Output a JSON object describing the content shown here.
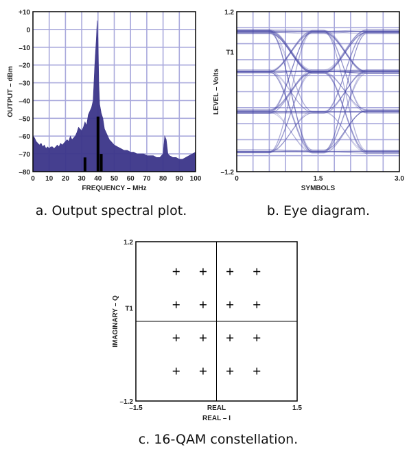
{
  "chart_data": [
    {
      "type": "area",
      "xlabel": "FREQUENCY – MHz",
      "ylabel": "OUTPUT – dBm",
      "xlim": [
        0,
        100
      ],
      "ylim": [
        -80,
        10
      ],
      "x_ticks": [
        "0",
        "10",
        "20",
        "30",
        "40",
        "50",
        "60",
        "70",
        "80",
        "90",
        "100"
      ],
      "y_ticks": [
        "+10",
        "0",
        "–10",
        "–20",
        "–30",
        "–40",
        "–50",
        "–60",
        "–70",
        "–80"
      ],
      "grid": true,
      "series_color": "#3b3589",
      "spectrum": {
        "x": [
          0,
          1,
          2,
          3,
          4,
          5,
          6,
          7,
          8,
          9,
          10,
          11,
          12,
          13,
          14,
          15,
          16,
          17,
          18,
          19,
          20,
          21,
          22,
          23,
          24,
          25,
          26,
          27,
          28,
          29,
          30,
          31,
          32,
          33,
          34,
          35,
          36,
          37,
          38,
          39,
          39.5,
          40,
          40.5,
          41,
          42,
          43,
          44,
          45,
          46,
          47,
          48,
          49,
          50,
          52,
          54,
          56,
          58,
          60,
          62,
          64,
          66,
          68,
          70,
          72,
          74,
          76,
          78,
          80,
          81,
          82,
          83,
          84,
          86,
          88,
          90,
          92,
          94,
          96,
          98,
          100
        ],
        "y": [
          -60,
          -61,
          -63,
          -64,
          -65,
          -64,
          -66,
          -65,
          -67,
          -66,
          -67,
          -66,
          -66,
          -67,
          -66,
          -65,
          -66,
          -64,
          -65,
          -64,
          -63,
          -62,
          -63,
          -60,
          -62,
          -61,
          -60,
          -58,
          -55,
          -56,
          -57,
          -55,
          -52,
          -54,
          -48,
          -46,
          -44,
          -40,
          -20,
          -5,
          5,
          -5,
          -30,
          -42,
          -47,
          -50,
          -56,
          -58,
          -60,
          -62,
          -63,
          -64,
          -65,
          -66,
          -67,
          -68,
          -68,
          -69,
          -69,
          -70,
          -70,
          -70,
          -71,
          -71,
          -71,
          -72,
          -72,
          -70,
          -60,
          -62,
          -70,
          -71,
          -72,
          -72,
          -73,
          -73,
          -72,
          -71,
          -70,
          -69
        ]
      },
      "spikes": [
        {
          "x": 32,
          "y": -72
        },
        {
          "x": 40,
          "y": -49
        },
        {
          "x": 42,
          "y": -70
        }
      ]
    },
    {
      "type": "line",
      "xlabel": "SYMBOLS",
      "ylabel": "LEVEL – Volts",
      "x_ticks": [
        "0",
        "1.5",
        "3.0"
      ],
      "y_ticks": [
        "1.2",
        "T1",
        "–1.2"
      ],
      "xlim": [
        0,
        3
      ],
      "ylim": [
        -1.2,
        1.2
      ],
      "levels": [
        0.9,
        0.3,
        -0.3,
        -0.9
      ],
      "transition_times": [
        1.0,
        2.0
      ],
      "traces": 64,
      "grid": true,
      "series_color": "#4a4aa8"
    },
    {
      "type": "scatter",
      "xlabel": "REAL – I",
      "ylabel": "IMAGINARY – Q",
      "x_ticks": [
        "–1.5",
        "REAL",
        "1.5"
      ],
      "y_ticks": [
        "1.2",
        "T1",
        "–1.2"
      ],
      "xlim": [
        -1.5,
        1.5
      ],
      "ylim": [
        -1.2,
        1.2
      ],
      "points": [
        {
          "x": -0.75,
          "y": 0.75
        },
        {
          "x": -0.25,
          "y": 0.75
        },
        {
          "x": 0.25,
          "y": 0.75
        },
        {
          "x": 0.75,
          "y": 0.75
        },
        {
          "x": -0.75,
          "y": 0.25
        },
        {
          "x": -0.25,
          "y": 0.25
        },
        {
          "x": 0.25,
          "y": 0.25
        },
        {
          "x": 0.75,
          "y": 0.25
        },
        {
          "x": -0.75,
          "y": -0.25
        },
        {
          "x": -0.25,
          "y": -0.25
        },
        {
          "x": 0.25,
          "y": -0.25
        },
        {
          "x": 0.75,
          "y": -0.25
        },
        {
          "x": -0.75,
          "y": -0.75
        },
        {
          "x": -0.25,
          "y": -0.75
        },
        {
          "x": 0.25,
          "y": -0.75
        },
        {
          "x": 0.75,
          "y": -0.75
        }
      ],
      "marker": "+",
      "grid": false
    }
  ],
  "captions": {
    "a": "a. Output spectral plot.",
    "b": "b. Eye diagram.",
    "c": "c. 16-QAM constellation."
  },
  "colors": {
    "spectrum_fill": "#3b3589",
    "grid": "#a9a9dc",
    "eye_trace": "#4a4aa8"
  }
}
